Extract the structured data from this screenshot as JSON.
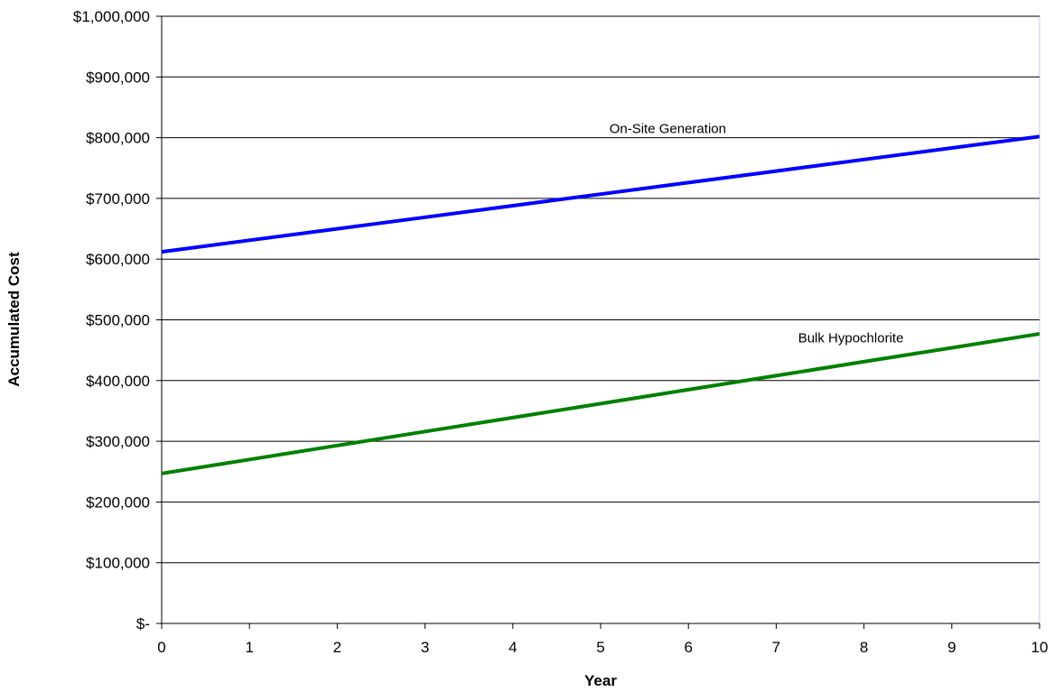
{
  "chart_data": {
    "type": "line",
    "title": "",
    "xlabel": "Year",
    "ylabel": "Accumulated Cost",
    "x": [
      0,
      1,
      2,
      3,
      4,
      5,
      6,
      7,
      8,
      9,
      10
    ],
    "xlim": [
      0,
      10
    ],
    "ylim": [
      0,
      1000000
    ],
    "x_ticks": [
      "0",
      "1",
      "2",
      "3",
      "4",
      "5",
      "6",
      "7",
      "8",
      "9",
      "10"
    ],
    "y_ticks": [
      {
        "value": 0,
        "label": "$-"
      },
      {
        "value": 100000,
        "label": "$100,000"
      },
      {
        "value": 200000,
        "label": "$200,000"
      },
      {
        "value": 300000,
        "label": "$300,000"
      },
      {
        "value": 400000,
        "label": "$400,000"
      },
      {
        "value": 500000,
        "label": "$500,000"
      },
      {
        "value": 600000,
        "label": "$600,000"
      },
      {
        "value": 700000,
        "label": "$700,000"
      },
      {
        "value": 800000,
        "label": "$800,000"
      },
      {
        "value": 900000,
        "label": "$900,000"
      },
      {
        "value": 1000000,
        "label": "$1,000,000"
      }
    ],
    "grid": "horizontal",
    "series": [
      {
        "name": "On-Site Generation",
        "color": "#0000ff",
        "values": [
          612000,
          631000,
          650000,
          669000,
          688000,
          707000,
          726000,
          745000,
          764000,
          783000,
          802000
        ]
      },
      {
        "name": "Bulk Hypochlorite",
        "color": "#008000",
        "values": [
          247000,
          270000,
          293000,
          316000,
          339000,
          362000,
          385000,
          408000,
          431000,
          454000,
          477000
        ]
      }
    ],
    "annotations": [
      {
        "text": "On-Site Generation",
        "series": 0,
        "x": 5.1,
        "y": 815000,
        "mask": [
          4.6,
          6.6
        ]
      },
      {
        "text": "Bulk Hypochlorite",
        "series": 1,
        "x": 7.25,
        "y": 470000,
        "mask": null
      }
    ]
  }
}
